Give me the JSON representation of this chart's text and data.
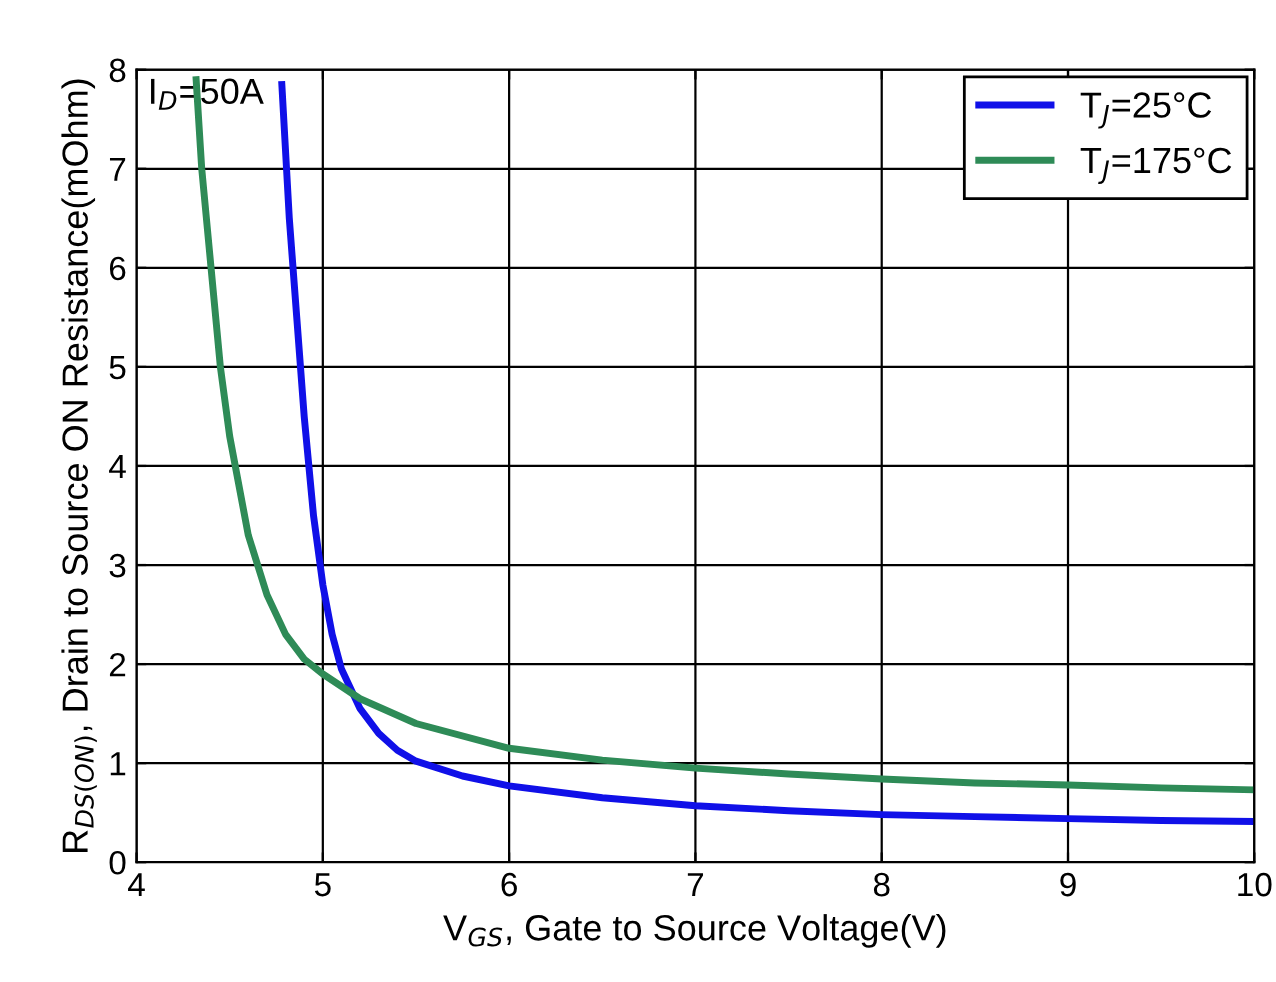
{
  "chart_data": {
    "type": "line",
    "xlabel": "V$_{GS}$, Gate to Source Voltage(V)",
    "ylabel": "R$_{DS(ON)}$, Drain to Source ON Resistance(mOhm)",
    "annotations": [
      "I$_{D}$=50A"
    ],
    "xlim": [
      4,
      10
    ],
    "ylim": [
      0,
      8
    ],
    "xticks": [
      4,
      5,
      6,
      7,
      8,
      9,
      10
    ],
    "yticks": [
      0,
      1,
      2,
      3,
      4,
      5,
      6,
      7,
      8
    ],
    "grid": true,
    "legend": "top right",
    "marker": "none",
    "line_style": "solid",
    "series": [
      {
        "name": "T$_{J}$=25°C",
        "color": "#1010e8",
        "x": [
          4.78,
          4.82,
          4.86,
          4.9,
          4.95,
          5.0,
          5.05,
          5.1,
          5.2,
          5.3,
          5.4,
          5.5,
          5.75,
          6.0,
          6.5,
          7,
          7.5,
          8,
          8.5,
          9,
          9.5,
          10
        ],
        "values": [
          7.85,
          6.5,
          5.5,
          4.5,
          3.5,
          2.8,
          2.3,
          1.95,
          1.55,
          1.3,
          1.13,
          1.02,
          0.87,
          0.77,
          0.65,
          0.57,
          0.52,
          0.48,
          0.46,
          0.44,
          0.42,
          0.41
        ]
      },
      {
        "name": "T$_{J}$=175°C",
        "color": "#2e8b57",
        "x": [
          4.32,
          4.35,
          4.4,
          4.45,
          4.5,
          4.6,
          4.7,
          4.8,
          4.9,
          5.0,
          5.2,
          5.5,
          6,
          6.5,
          7,
          7.5,
          8,
          8.5,
          9,
          9.5,
          10
        ],
        "values": [
          7.9,
          7.0,
          6.0,
          5.0,
          4.3,
          3.3,
          2.7,
          2.3,
          2.05,
          1.9,
          1.65,
          1.4,
          1.15,
          1.03,
          0.95,
          0.89,
          0.84,
          0.8,
          0.78,
          0.75,
          0.73
        ]
      }
    ]
  }
}
